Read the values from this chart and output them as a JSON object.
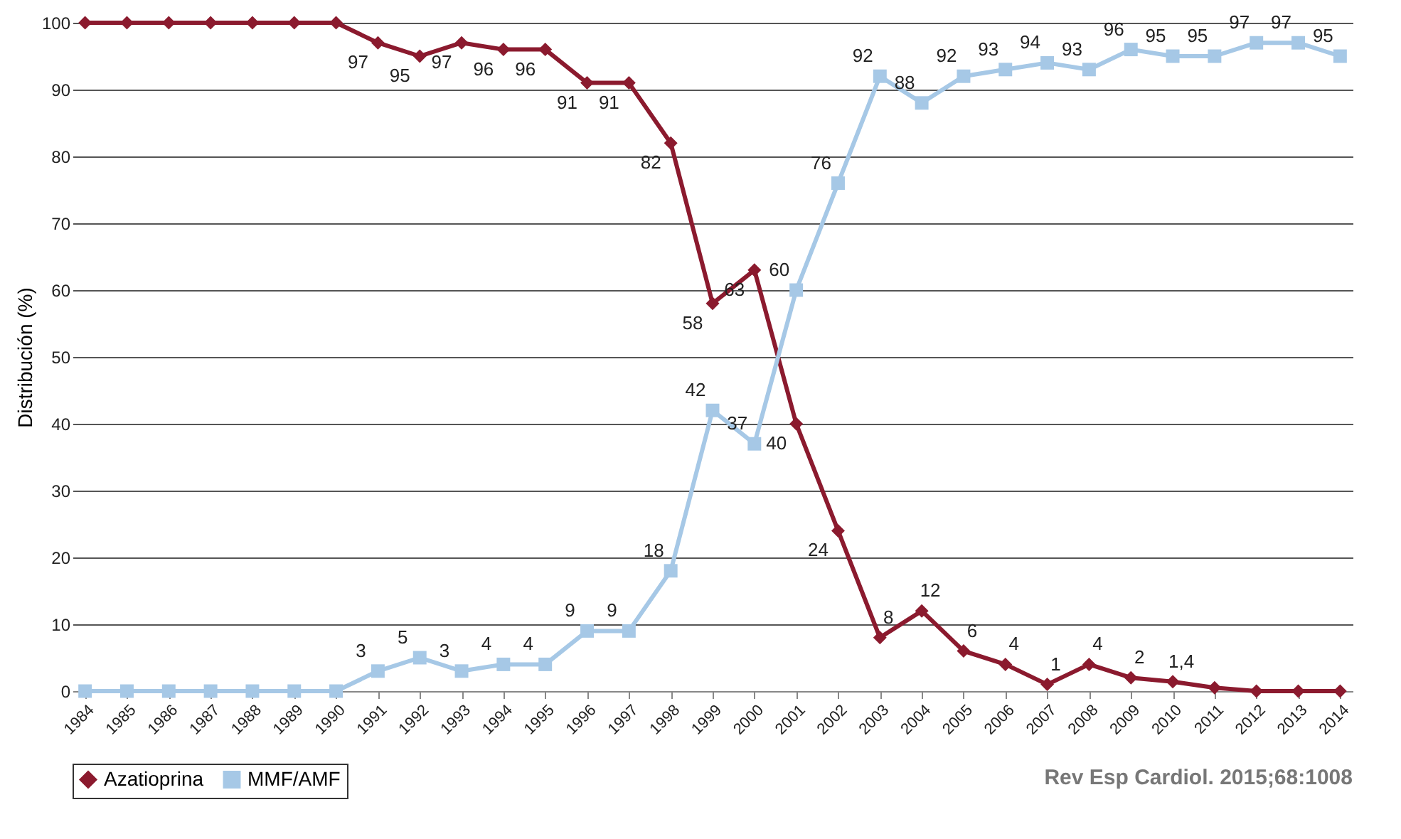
{
  "chart_data": {
    "type": "line",
    "ylabel": "Distribución (%)",
    "categories": [
      "1984",
      "1985",
      "1986",
      "1987",
      "1988",
      "1989",
      "1990",
      "1991",
      "1992",
      "1993",
      "1994",
      "1995",
      "1996",
      "1997",
      "1998",
      "1999",
      "2000",
      "2001",
      "2002",
      "2003",
      "2004",
      "2005",
      "2006",
      "2007",
      "2008",
      "2009",
      "2010",
      "2011",
      "2012",
      "2013",
      "2014"
    ],
    "series": [
      {
        "name": "Azatioprina",
        "color": "#8b1a2e",
        "marker": "diamond",
        "values": [
          100,
          100,
          100,
          100,
          100,
          100,
          100,
          97,
          95,
          97,
          96,
          96,
          91,
          91,
          82,
          58,
          63,
          40,
          24,
          8,
          12,
          6,
          4,
          1,
          4,
          2,
          1.4,
          0.5,
          0,
          0,
          0
        ],
        "value_labels": [
          null,
          null,
          null,
          null,
          null,
          null,
          null,
          "97",
          "95",
          "97",
          "96",
          "96",
          "91",
          "91",
          "82",
          "58",
          "63",
          "40",
          "24",
          "8",
          "12",
          "6",
          "4",
          "1",
          "4",
          "2",
          "1,4",
          null,
          null,
          null,
          null
        ]
      },
      {
        "name": "MMF/AMF",
        "color": "#a6c8e6",
        "marker": "square",
        "values": [
          0,
          0,
          0,
          0,
          0,
          0,
          0,
          3,
          5,
          3,
          4,
          4,
          9,
          9,
          18,
          42,
          37,
          60,
          76,
          92,
          88,
          92,
          93,
          94,
          93,
          96,
          95,
          95,
          97,
          97,
          95
        ],
        "value_labels": [
          null,
          null,
          null,
          null,
          null,
          null,
          null,
          "3",
          "5",
          "3",
          "4",
          "4",
          "9",
          "9",
          "18",
          "42",
          "37",
          "60",
          "76",
          "92",
          "88",
          "92",
          "93",
          "94",
          "93",
          "96",
          "95",
          "95",
          "97",
          "97",
          "95"
        ]
      }
    ],
    "ylim": [
      0,
      100
    ],
    "yticks": [
      0,
      10,
      20,
      30,
      40,
      50,
      60,
      70,
      80,
      90,
      100
    ],
    "grid": "y",
    "legend": "bottom",
    "line_style": "solid",
    "annotations": [
      "Rev Esp Cardiol. 2015;68:1008"
    ]
  }
}
